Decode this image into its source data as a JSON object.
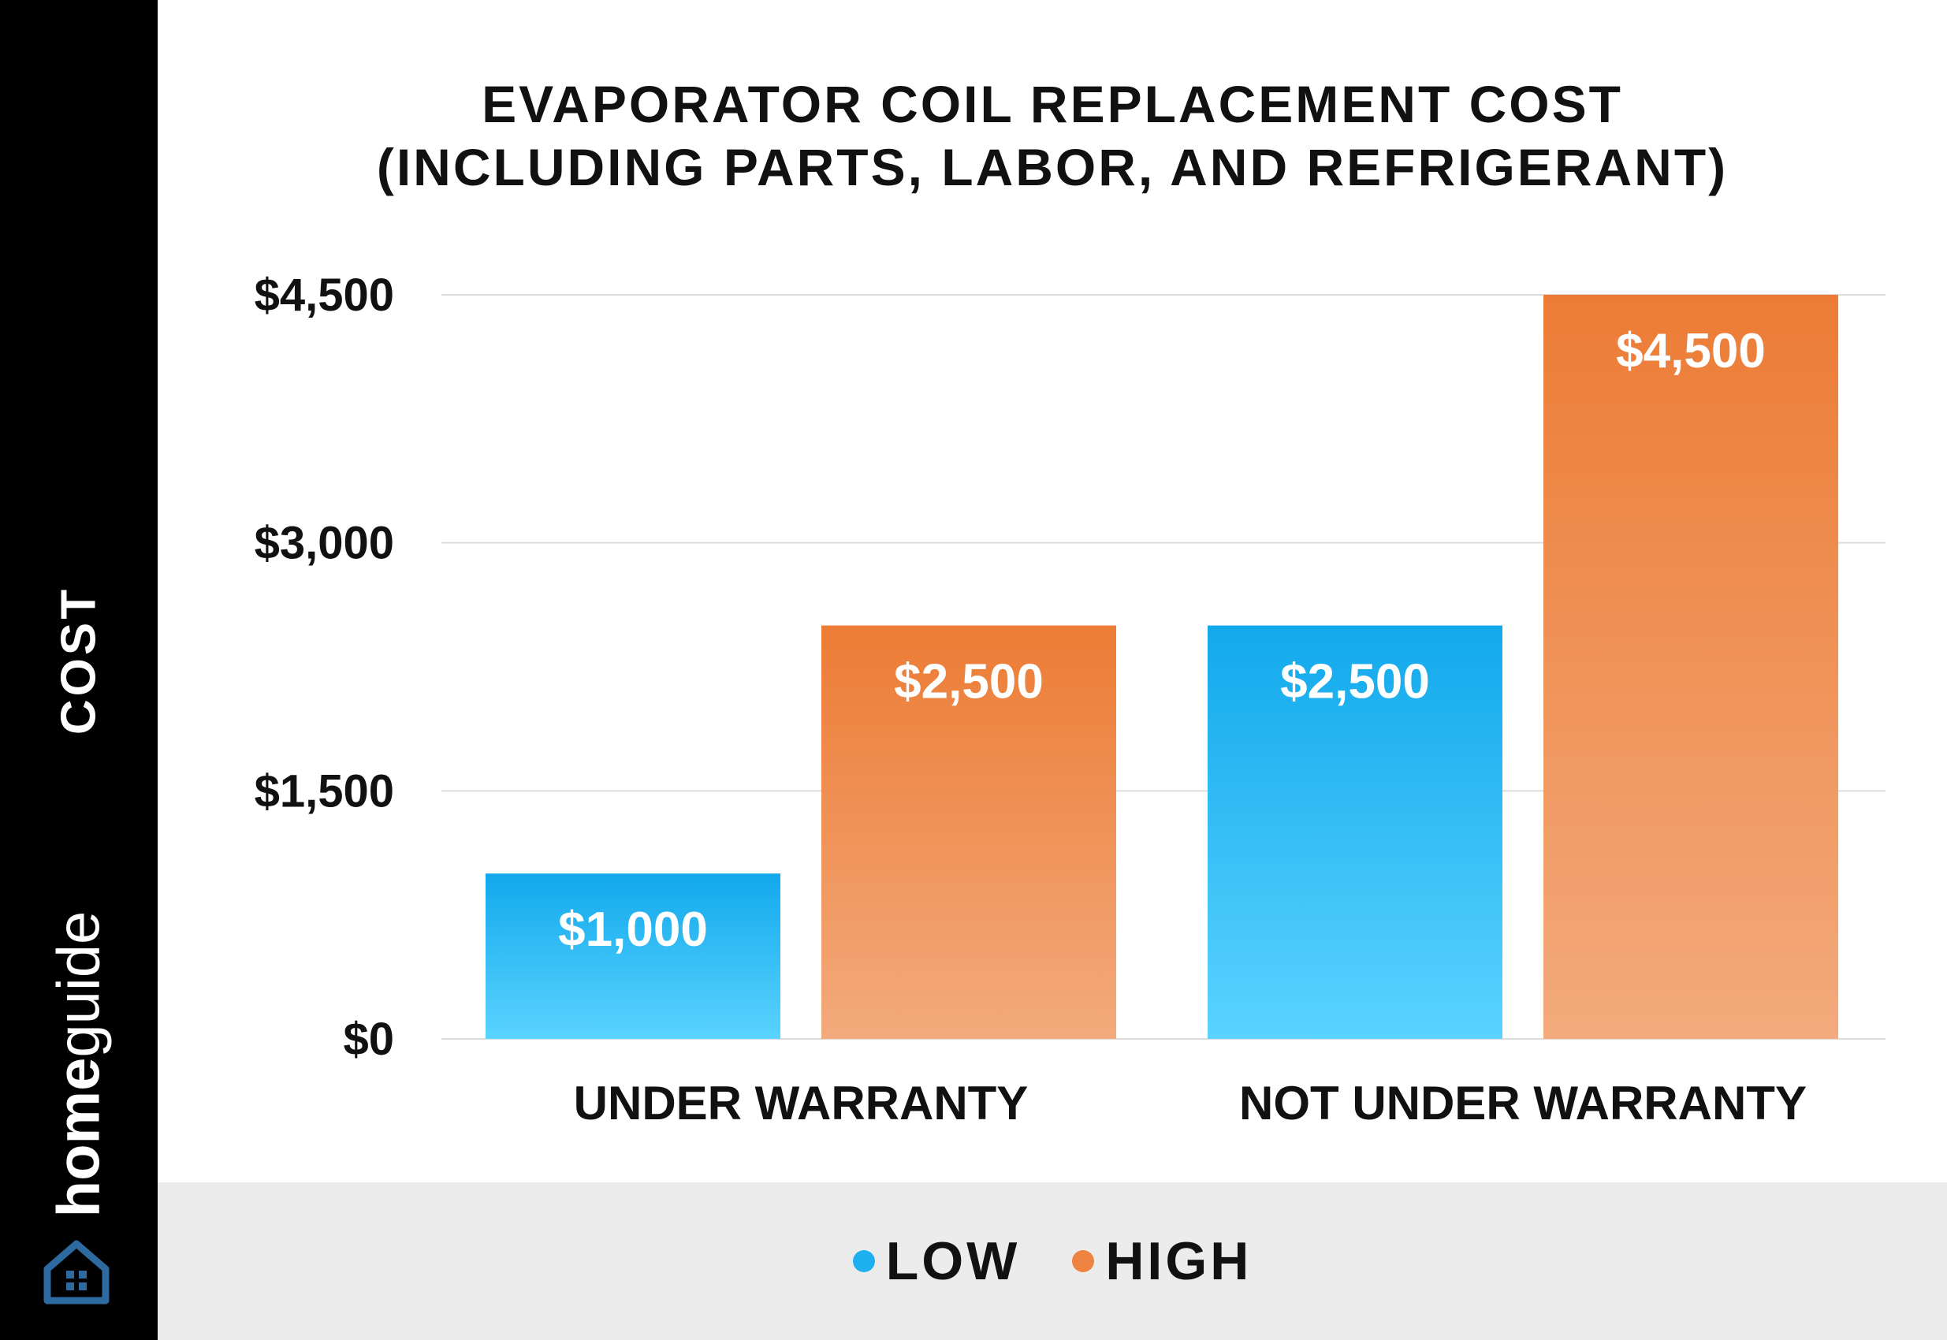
{
  "title_lines": [
    "EVAPORATOR COIL REPLACEMENT COST",
    "(INCLUDING PARTS, LABOR, AND REFRIGERANT)"
  ],
  "sidebar": {
    "ylabel": "COST",
    "brand_bold": "home",
    "brand_light": "guide",
    "logo_icon": "house-icon"
  },
  "colors": {
    "low": "#1eb0ef",
    "high": "#ee8240",
    "sidebar_bg": "#000000",
    "legend_bg": "#ececec"
  },
  "chart_data": {
    "type": "bar",
    "title": "EVAPORATOR COIL REPLACEMENT COST (INCLUDING PARTS, LABOR, AND REFRIGERANT)",
    "ylabel": "COST",
    "categories": [
      "UNDER WARRANTY",
      "NOT UNDER WARRANTY"
    ],
    "series": [
      {
        "name": "LOW",
        "values": [
          1000,
          2500
        ],
        "labels": [
          "$1,000",
          "$2,500"
        ]
      },
      {
        "name": "HIGH",
        "values": [
          2500,
          4500
        ],
        "labels": [
          "$2,500",
          "$4,500"
        ]
      }
    ],
    "ylim": [
      0,
      4500
    ],
    "yticks": [
      0,
      1500,
      3000,
      4500
    ],
    "ytick_labels": [
      "$0",
      "$1,500",
      "$3,000",
      "$4,500"
    ],
    "grid": true,
    "legend": "bottom-center"
  }
}
